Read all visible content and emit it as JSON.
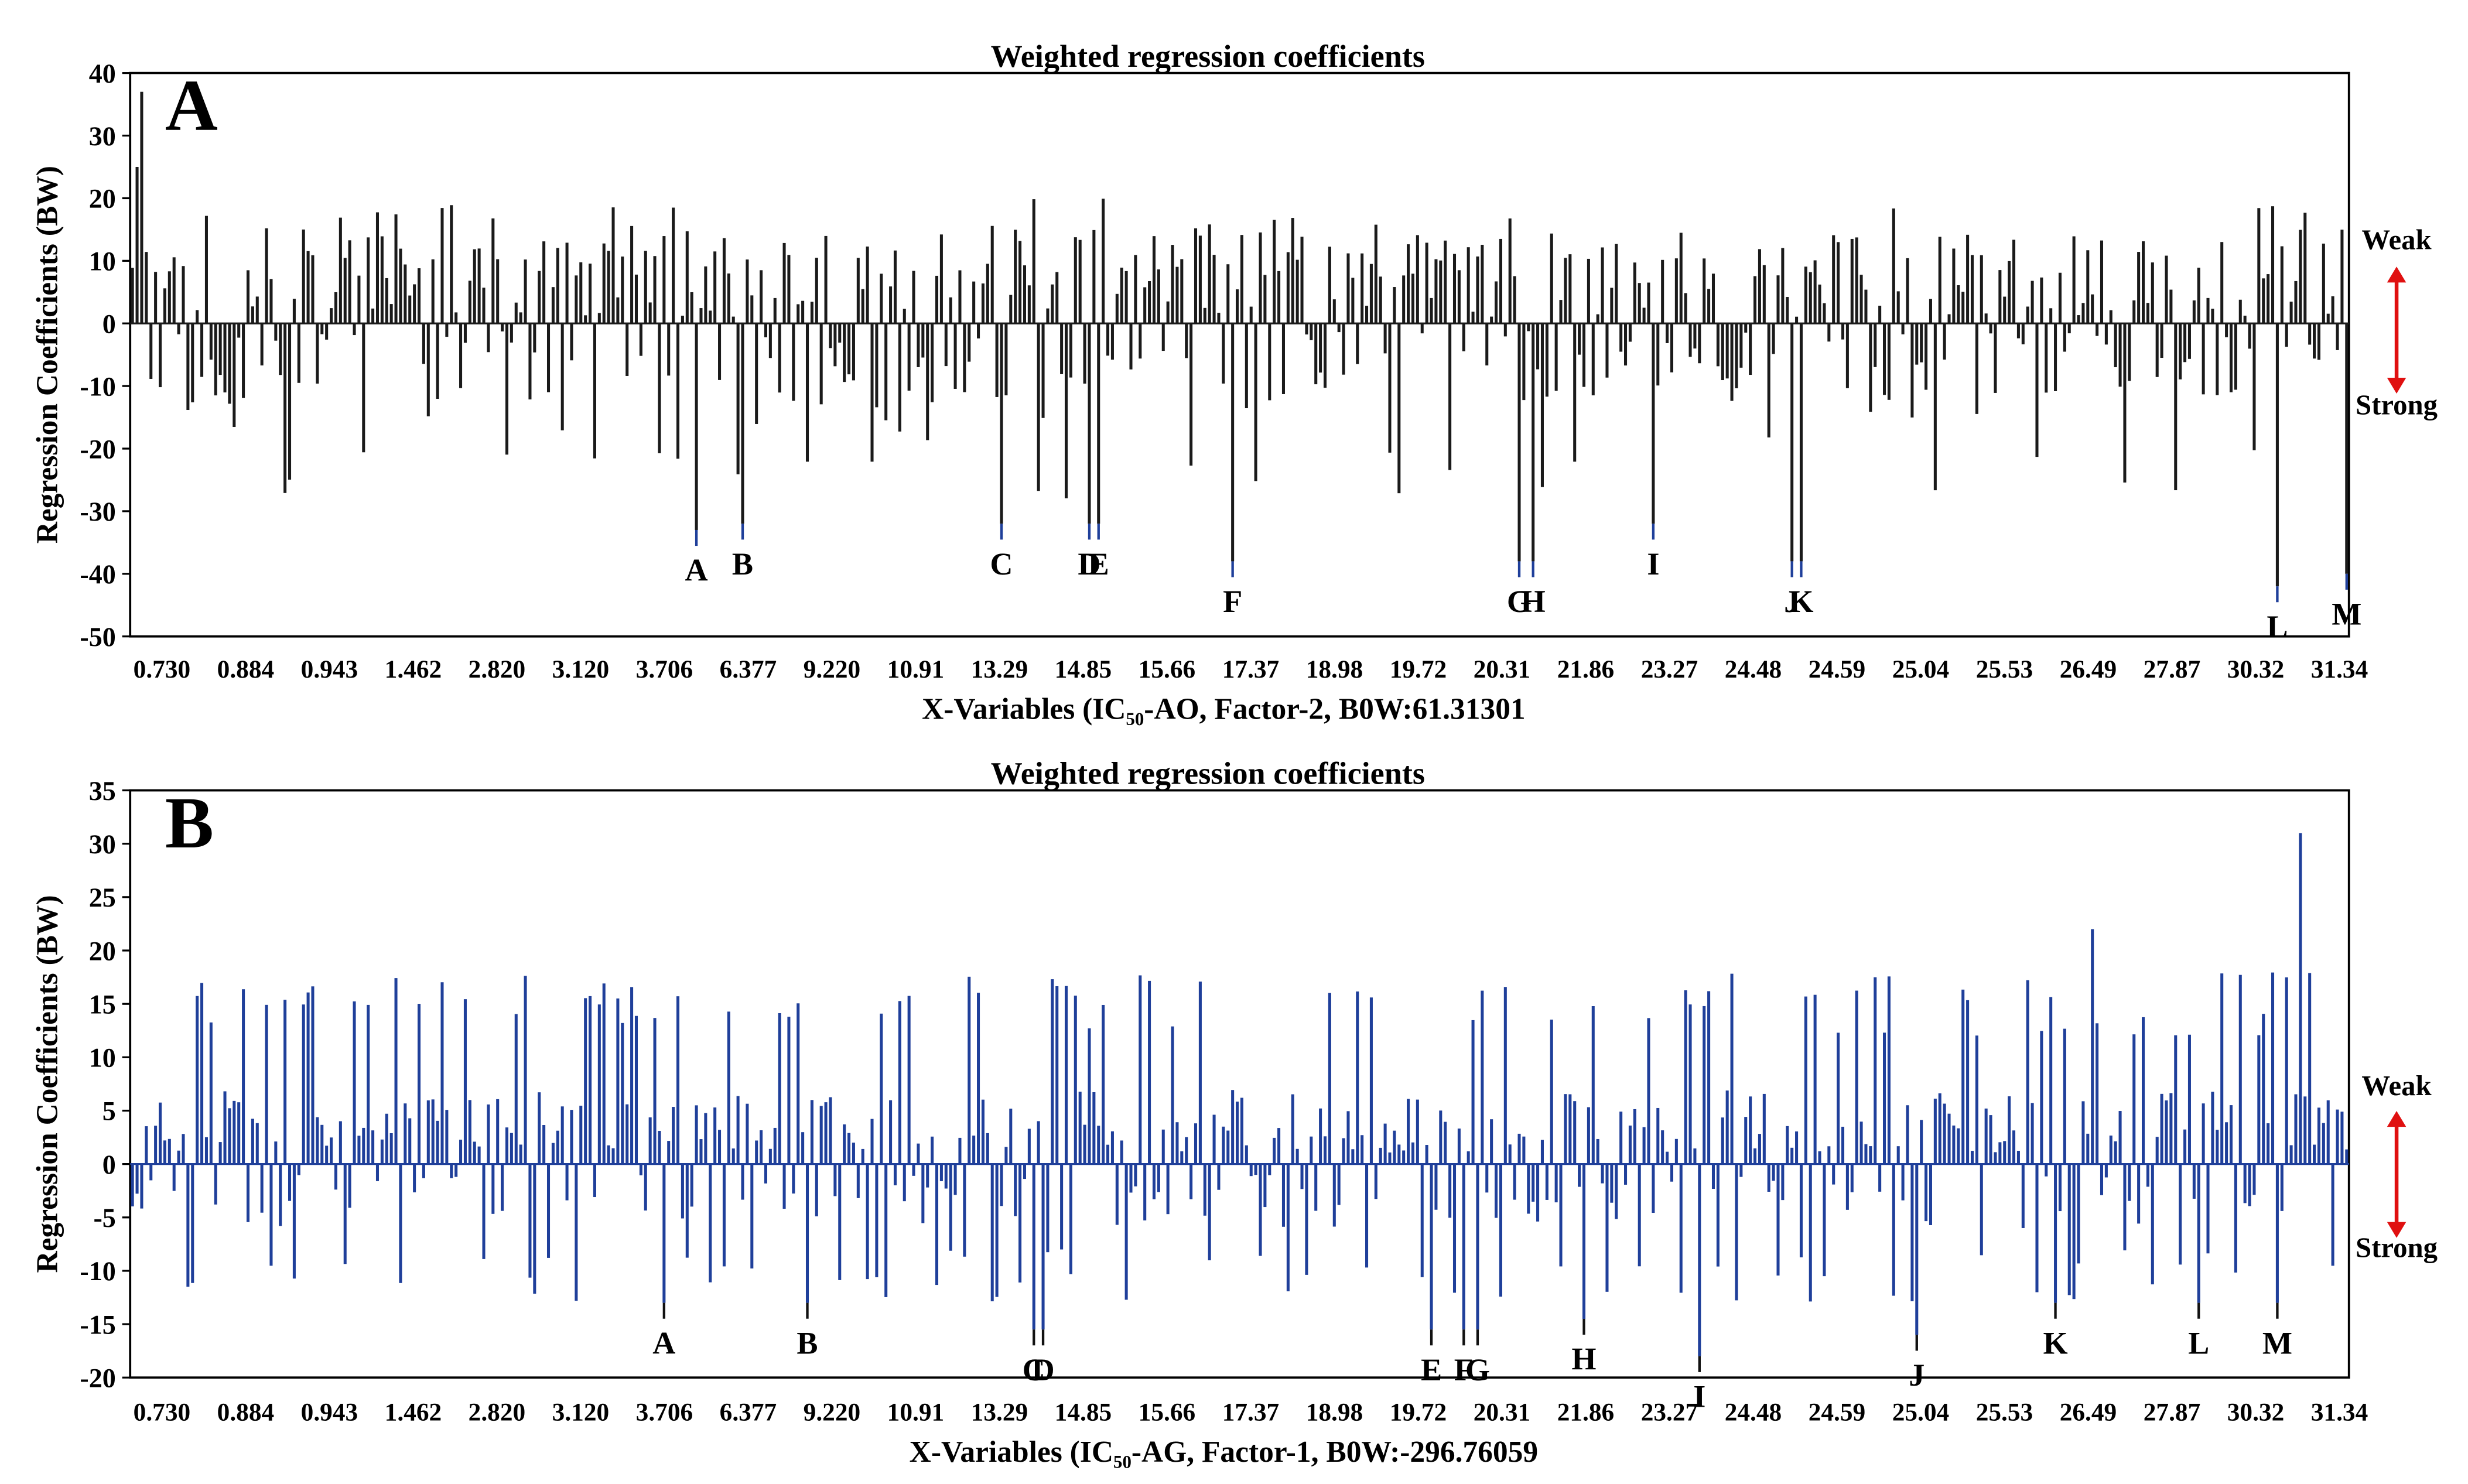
{
  "chart_data": [
    {
      "type": "bar",
      "panel_label": "A",
      "title": "Weighted regression coefficients",
      "ylabel": "Regression Coefficients (BW)",
      "xlabel": "X-Variables (IC₅₀-AO, Factor-2, B0W:61.31301",
      "ylim": [
        -50,
        40
      ],
      "yticks": [
        40,
        30,
        20,
        10,
        0,
        -10,
        -20,
        -30,
        -40,
        -50
      ],
      "n_bars": 480,
      "x_tick_labels": [
        "0.730",
        "0.884",
        "0.943",
        "1.462",
        "2.820",
        "3.120",
        "3.706",
        "6.377",
        "9.220",
        "10.91",
        "13.29",
        "14.85",
        "15.66",
        "17.37",
        "18.98",
        "19.72",
        "20.31",
        "21.86",
        "23.27",
        "24.48",
        "24.59",
        "25.04",
        "25.53",
        "26.49",
        "27.87",
        "30.32",
        "31.34"
      ],
      "highlighted": [
        {
          "label": "A",
          "index": 122,
          "value": -33
        },
        {
          "label": "B",
          "index": 132,
          "value": -32
        },
        {
          "label": "C",
          "index": 188,
          "value": -32
        },
        {
          "label": "D",
          "index": 207,
          "value": -32
        },
        {
          "label": "E",
          "index": 209,
          "value": -32
        },
        {
          "label": "F",
          "index": 238,
          "value": -38
        },
        {
          "label": "G",
          "index": 300,
          "value": -38
        },
        {
          "label": "H",
          "index": 303,
          "value": -38
        },
        {
          "label": "I",
          "index": 329,
          "value": -32
        },
        {
          "label": "J",
          "index": 359,
          "value": -38
        },
        {
          "label": "K",
          "index": 361,
          "value": -38
        },
        {
          "label": "L",
          "index": 464,
          "value": -42
        },
        {
          "label": "M",
          "index": 479,
          "value": -40
        }
      ],
      "side_annotation": {
        "top": "Weak",
        "bottom": "Strong"
      },
      "bar_color": "#1a1a1a",
      "annotation_color": "#1f3f9a",
      "arrow_color": "#e01010",
      "values_note": "Remaining bar values are approximate readings: alternating positive (0 to +20) and negative (0 to -27) coefficients; largest positive near index 2 (+37)."
    },
    {
      "type": "bar",
      "panel_label": "B",
      "title": "Weighted regression coefficients",
      "ylabel": "Regression Coefficients (BW)",
      "xlabel": "X-Variables (IC₅₀-AG, Factor-1, B0W:-296.76059",
      "ylim": [
        -20,
        35
      ],
      "yticks": [
        35,
        30,
        25,
        20,
        15,
        10,
        5,
        0,
        -5,
        -10,
        -15,
        -20
      ],
      "n_bars": 480,
      "x_tick_labels": [
        "0.730",
        "0.884",
        "0.943",
        "1.462",
        "2.820",
        "3.120",
        "3.706",
        "6.377",
        "9.220",
        "10.91",
        "13.29",
        "14.85",
        "15.66",
        "17.37",
        "18.98",
        "19.72",
        "20.31",
        "21.86",
        "23.27",
        "24.48",
        "24.59",
        "25.04",
        "25.53",
        "26.49",
        "27.87",
        "30.32",
        "31.34"
      ],
      "highlighted": [
        {
          "label": "A",
          "index": 115,
          "value": -13
        },
        {
          "label": "B",
          "index": 146,
          "value": -13
        },
        {
          "label": "C",
          "index": 195,
          "value": -15.5
        },
        {
          "label": "D",
          "index": 197,
          "value": -15.5
        },
        {
          "label": "E",
          "index": 281,
          "value": -15.5
        },
        {
          "label": "F",
          "index": 288,
          "value": -15.5
        },
        {
          "label": "G",
          "index": 291,
          "value": -15.5
        },
        {
          "label": "H",
          "index": 314,
          "value": -14.5
        },
        {
          "label": "I",
          "index": 339,
          "value": -18
        },
        {
          "label": "J",
          "index": 386,
          "value": -16
        },
        {
          "label": "K",
          "index": 416,
          "value": -13
        },
        {
          "label": "L",
          "index": 447,
          "value": -13
        },
        {
          "label": "M",
          "index": 464,
          "value": -13
        }
      ],
      "side_annotation": {
        "top": "Weak",
        "bottom": "Strong"
      },
      "bar_color": "#1f3f9a",
      "annotation_color": "#111111",
      "arrow_color": "#e01010",
      "values_note": "Remaining bar values are approximate readings: coefficients between -13 and +22; largest positive near index 469 (+31)."
    }
  ]
}
